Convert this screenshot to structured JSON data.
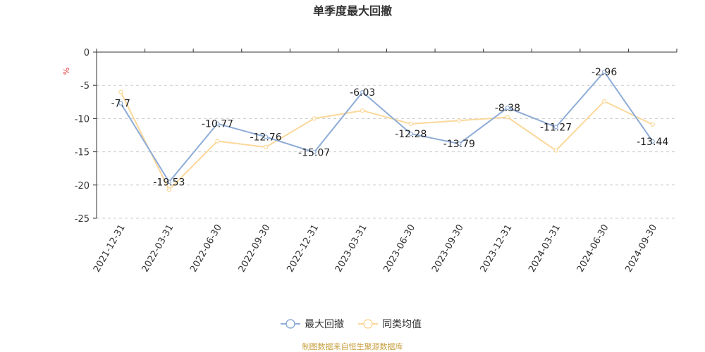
{
  "chart_data": {
    "type": "line",
    "title": "单季度最大回撤",
    "ylabel": "%",
    "ylim": [
      -25,
      0
    ],
    "yticks": [
      0,
      -5,
      -10,
      -15,
      -20,
      -25
    ],
    "categories": [
      "2021-12-31",
      "2022-03-31",
      "2022-06-30",
      "2022-09-30",
      "2022-12-31",
      "2023-03-31",
      "2023-06-30",
      "2023-09-30",
      "2023-12-31",
      "2024-03-31",
      "2024-06-30",
      "2024-09-30"
    ],
    "series": [
      {
        "name": "最大回撤",
        "color": "#8eacd8",
        "values": [
          -7.7,
          -19.53,
          -10.77,
          -12.76,
          -15.07,
          -6.03,
          -12.28,
          -13.79,
          -8.38,
          -11.27,
          -2.96,
          -13.44
        ],
        "labels": [
          "-7.7",
          "-19.53",
          "-10.77",
          "-12.76",
          "-15.07",
          "-6.03",
          "-12.28",
          "-13.79",
          "-8.38",
          "-11.27",
          "-2.96",
          "-13.44"
        ]
      },
      {
        "name": "同类均值",
        "color": "#fbd89a",
        "values": [
          -6.0,
          -20.7,
          -13.4,
          -14.3,
          -10.0,
          -8.8,
          -10.8,
          -10.3,
          -9.8,
          -14.8,
          -7.4,
          -10.9
        ]
      }
    ],
    "grid": "horizontal-dashed",
    "legend": "bottom-center"
  },
  "source_text": "制图数据来自恒生聚源数据库"
}
